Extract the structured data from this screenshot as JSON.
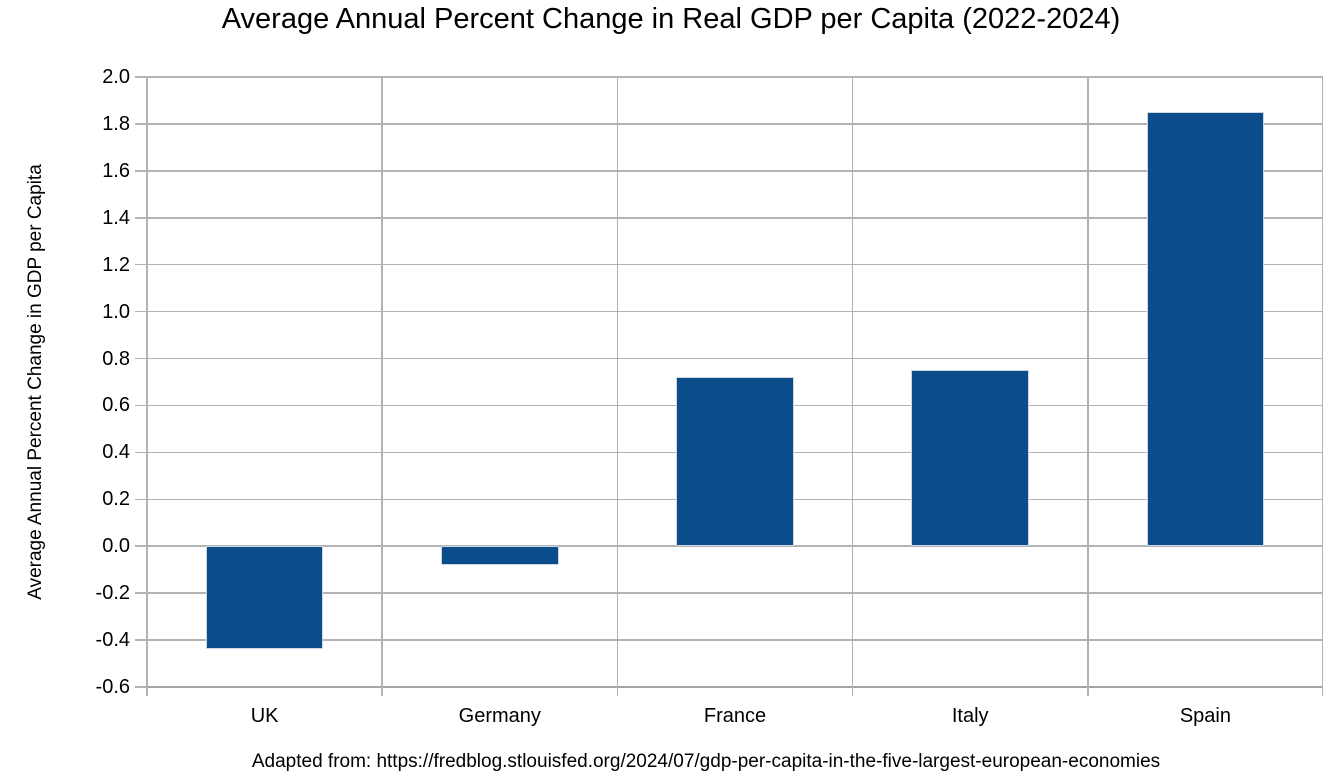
{
  "chart_data": {
    "type": "bar",
    "title": "Average Annual Percent Change in Real GDP per Capita (2022-2024)",
    "xlabel": "",
    "ylabel": "Average Annual Percent Change in GDP per Capita",
    "footnote": "Adapted from: https://fredblog.stlouisfed.org/2024/07/gdp-per-capita-in-the-five-largest-european-economies",
    "categories": [
      "UK",
      "Germany",
      "France",
      "Italy",
      "Spain"
    ],
    "values": [
      -0.44,
      -0.08,
      0.72,
      0.75,
      1.85
    ],
    "ylim": [
      -0.6,
      2.0
    ],
    "ytick_step": 0.2,
    "bar_color": "#0b4d8b",
    "grid_color": "#b3b3b3",
    "axis_color": "#a5a5a5",
    "grid": "horizontal and vertical gridlines, outward ticks",
    "legend": "none",
    "bar_width_fraction": 0.5
  }
}
